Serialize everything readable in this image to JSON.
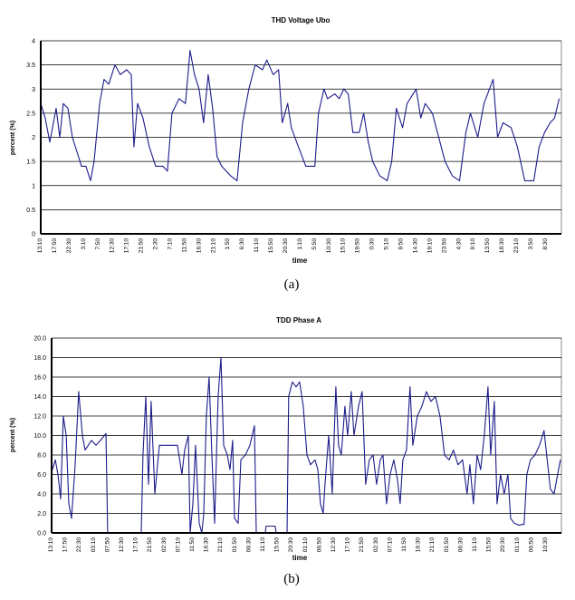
{
  "chart_data": [
    {
      "type": "line",
      "title": "THD  Voltage Ubo",
      "xlabel": "time",
      "ylabel": "percent (%)",
      "caption": "(a)",
      "ylim": [
        0,
        4
      ],
      "xlim": [
        0,
        36.2
      ],
      "grid": true,
      "line_color": "#1c1c8a",
      "yticks": [
        "0",
        "0.5",
        "1",
        "1.5",
        "2",
        "2.5",
        "3",
        "3.5",
        "4"
      ],
      "ytick_values": [
        0,
        0.5,
        1,
        1.5,
        2,
        2.5,
        3,
        3.5,
        4
      ],
      "xticks": [
        "13:10",
        "17:50",
        "22:30",
        "3:10",
        "7:50",
        "12:30",
        "17:10",
        "21:50",
        "2:30",
        "7:10",
        "11:50",
        "16:30",
        "21:10",
        "1:50",
        "6:30",
        "11:10",
        "15:50",
        "20:30",
        "1:10",
        "5:50",
        "10:30",
        "15:10",
        "19:50",
        "0:30",
        "5:10",
        "9:50",
        "14:30",
        "19:10",
        "23:50",
        "4:30",
        "9:10",
        "13:50",
        "18:30",
        "23:10",
        "3:50",
        "8:30"
      ],
      "points": [
        [
          0,
          2.7
        ],
        [
          0.31,
          2.4
        ],
        [
          0.63,
          1.9
        ],
        [
          1.07,
          2.6
        ],
        [
          1.32,
          2.0
        ],
        [
          1.57,
          2.7
        ],
        [
          1.89,
          2.6
        ],
        [
          2.2,
          2.0
        ],
        [
          2.52,
          1.7
        ],
        [
          2.83,
          1.4
        ],
        [
          3.14,
          1.4
        ],
        [
          3.46,
          1.1
        ],
        [
          3.71,
          1.5
        ],
        [
          4.09,
          2.7
        ],
        [
          4.4,
          3.2
        ],
        [
          4.72,
          3.1
        ],
        [
          5.16,
          3.5
        ],
        [
          5.53,
          3.3
        ],
        [
          5.97,
          3.4
        ],
        [
          6.29,
          3.3
        ],
        [
          6.48,
          1.8
        ],
        [
          6.73,
          2.7
        ],
        [
          7.11,
          2.4
        ],
        [
          7.55,
          1.8
        ],
        [
          7.99,
          1.4
        ],
        [
          8.49,
          1.4
        ],
        [
          8.81,
          1.3
        ],
        [
          9.12,
          2.5
        ],
        [
          9.62,
          2.8
        ],
        [
          10.06,
          2.7
        ],
        [
          10.38,
          3.8
        ],
        [
          10.69,
          3.3
        ],
        [
          11.01,
          3.0
        ],
        [
          11.32,
          2.3
        ],
        [
          11.64,
          3.3
        ],
        [
          11.95,
          2.6
        ],
        [
          12.26,
          1.6
        ],
        [
          12.58,
          1.4
        ],
        [
          13.21,
          1.2
        ],
        [
          13.65,
          1.1
        ],
        [
          14.03,
          2.3
        ],
        [
          14.47,
          3.0
        ],
        [
          14.91,
          3.5
        ],
        [
          15.41,
          3.4
        ],
        [
          15.72,
          3.6
        ],
        [
          16.16,
          3.3
        ],
        [
          16.54,
          3.4
        ],
        [
          16.79,
          2.3
        ],
        [
          17.17,
          2.7
        ],
        [
          17.42,
          2.2
        ],
        [
          17.92,
          1.8
        ],
        [
          18.43,
          1.4
        ],
        [
          19.06,
          1.4
        ],
        [
          19.31,
          2.5
        ],
        [
          19.69,
          3.0
        ],
        [
          19.94,
          2.8
        ],
        [
          20.44,
          2.9
        ],
        [
          20.75,
          2.8
        ],
        [
          21.07,
          3.0
        ],
        [
          21.38,
          2.9
        ],
        [
          21.7,
          2.1
        ],
        [
          22.14,
          2.1
        ],
        [
          22.45,
          2.5
        ],
        [
          22.77,
          1.9
        ],
        [
          23.08,
          1.5
        ],
        [
          23.58,
          1.2
        ],
        [
          24.09,
          1.1
        ],
        [
          24.4,
          1.5
        ],
        [
          24.72,
          2.6
        ],
        [
          25.16,
          2.2
        ],
        [
          25.47,
          2.7
        ],
        [
          26.1,
          3.0
        ],
        [
          26.42,
          2.4
        ],
        [
          26.73,
          2.7
        ],
        [
          27.23,
          2.5
        ],
        [
          27.67,
          2.0
        ],
        [
          28.11,
          1.5
        ],
        [
          28.62,
          1.2
        ],
        [
          29.12,
          1.1
        ],
        [
          29.56,
          2.1
        ],
        [
          29.87,
          2.5
        ],
        [
          30.38,
          2.0
        ],
        [
          30.82,
          2.7
        ],
        [
          31.45,
          3.2
        ],
        [
          31.76,
          2.0
        ],
        [
          32.14,
          2.3
        ],
        [
          32.7,
          2.2
        ],
        [
          33.14,
          1.8
        ],
        [
          33.65,
          1.1
        ],
        [
          34.28,
          1.1
        ],
        [
          34.65,
          1.8
        ],
        [
          35.03,
          2.1
        ],
        [
          35.41,
          2.3
        ],
        [
          35.72,
          2.4
        ],
        [
          36.04,
          2.8
        ]
      ]
    },
    {
      "type": "line",
      "title": "TDD  Phase A",
      "xlabel": "time",
      "ylabel": "percent (%)",
      "caption": "(b)",
      "ylim": [
        0,
        20
      ],
      "xlim": [
        0,
        36.1
      ],
      "grid": true,
      "line_color": "#1c1c8a",
      "yticks": [
        "0.0",
        "2.0",
        "4.0",
        "6.0",
        "8.0",
        "10.0",
        "12.0",
        "14.0",
        "16.0",
        "18.0",
        "20.0"
      ],
      "ytick_values": [
        0,
        2,
        4,
        6,
        8,
        10,
        12,
        14,
        16,
        18,
        20
      ],
      "xticks": [
        "13:10",
        "17:50",
        "22:30",
        "03:10",
        "07:50",
        "12:30",
        "17:10",
        "21:50",
        "02:30",
        "07:10",
        "11:50",
        "16:30",
        "21:10",
        "01:50",
        "06:30",
        "11:10",
        "15:50",
        "20:30",
        "01:10",
        "06:50",
        "12:30",
        "17:10",
        "21:50",
        "02:30",
        "07:10",
        "11:50",
        "16:30",
        "21:10",
        "01:50",
        "06:30",
        "11:10",
        "15:50",
        "20:30",
        "01:10",
        "06:50",
        "10:30"
      ],
      "points": [
        [
          0.06,
          6.5
        ],
        [
          0.26,
          7.5
        ],
        [
          0.45,
          6.0
        ],
        [
          0.64,
          3.5
        ],
        [
          0.83,
          12.0
        ],
        [
          1.03,
          10.0
        ],
        [
          1.22,
          3.0
        ],
        [
          1.41,
          1.5
        ],
        [
          1.67,
          7.0
        ],
        [
          1.92,
          14.5
        ],
        [
          2.18,
          10.0
        ],
        [
          2.37,
          8.5
        ],
        [
          2.82,
          9.5
        ],
        [
          3.14,
          9.0
        ],
        [
          3.46,
          9.5
        ],
        [
          3.85,
          10.2
        ],
        [
          3.97,
          0
        ],
        [
          6.35,
          0
        ],
        [
          6.47,
          8
        ],
        [
          6.67,
          14
        ],
        [
          6.86,
          5
        ],
        [
          7.05,
          13.5
        ],
        [
          7.31,
          4
        ],
        [
          7.63,
          9
        ],
        [
          8.27,
          9
        ],
        [
          8.91,
          9
        ],
        [
          9.23,
          6
        ],
        [
          9.42,
          8.5
        ],
        [
          9.68,
          10
        ],
        [
          9.81,
          0
        ],
        [
          10.0,
          3
        ],
        [
          10.19,
          9
        ],
        [
          10.45,
          1
        ],
        [
          10.64,
          0
        ],
        [
          10.77,
          2
        ],
        [
          10.96,
          12
        ],
        [
          11.15,
          16
        ],
        [
          11.35,
          8
        ],
        [
          11.54,
          1
        ],
        [
          11.79,
          14
        ],
        [
          11.99,
          18
        ],
        [
          12.18,
          9
        ],
        [
          12.44,
          8
        ],
        [
          12.63,
          6.5
        ],
        [
          12.82,
          9.5
        ],
        [
          12.95,
          1.5
        ],
        [
          13.21,
          1
        ],
        [
          13.4,
          7.5
        ],
        [
          13.72,
          8
        ],
        [
          14.04,
          9
        ],
        [
          14.36,
          11
        ],
        [
          14.49,
          0
        ],
        [
          15.13,
          0
        ],
        [
          15.19,
          0.7
        ],
        [
          15.83,
          0.7
        ],
        [
          15.9,
          0
        ],
        [
          16.67,
          0
        ],
        [
          16.79,
          14
        ],
        [
          17.05,
          15.5
        ],
        [
          17.31,
          15
        ],
        [
          17.56,
          15.5
        ],
        [
          17.82,
          13
        ],
        [
          18.08,
          8
        ],
        [
          18.33,
          7
        ],
        [
          18.65,
          7.5
        ],
        [
          18.85,
          6.5
        ],
        [
          19.04,
          3
        ],
        [
          19.23,
          2
        ],
        [
          19.36,
          5
        ],
        [
          19.62,
          10
        ],
        [
          19.87,
          4
        ],
        [
          20.13,
          15
        ],
        [
          20.32,
          9
        ],
        [
          20.51,
          8
        ],
        [
          20.77,
          13
        ],
        [
          20.96,
          10
        ],
        [
          21.22,
          14.5
        ],
        [
          21.41,
          10
        ],
        [
          21.73,
          13
        ],
        [
          21.99,
          14.5
        ],
        [
          22.24,
          5
        ],
        [
          22.5,
          7.5
        ],
        [
          22.76,
          8
        ],
        [
          23.01,
          5
        ],
        [
          23.27,
          7.5
        ],
        [
          23.46,
          8
        ],
        [
          23.72,
          3
        ],
        [
          23.97,
          6
        ],
        [
          24.23,
          7.5
        ],
        [
          24.49,
          5.5
        ],
        [
          24.68,
          3
        ],
        [
          24.87,
          7.5
        ],
        [
          25.13,
          8.5
        ],
        [
          25.38,
          15
        ],
        [
          25.58,
          9
        ],
        [
          25.9,
          12
        ],
        [
          26.22,
          13
        ],
        [
          26.54,
          14.5
        ],
        [
          26.86,
          13.5
        ],
        [
          27.18,
          14
        ],
        [
          27.5,
          12
        ],
        [
          27.82,
          8
        ],
        [
          28.14,
          7.5
        ],
        [
          28.46,
          8.5
        ],
        [
          28.78,
          7
        ],
        [
          29.1,
          7.5
        ],
        [
          29.42,
          4
        ],
        [
          29.62,
          7
        ],
        [
          29.87,
          3
        ],
        [
          30.13,
          8
        ],
        [
          30.38,
          6.5
        ],
        [
          30.64,
          10
        ],
        [
          30.9,
          15
        ],
        [
          31.09,
          8
        ],
        [
          31.35,
          13.5
        ],
        [
          31.54,
          3
        ],
        [
          31.79,
          6
        ],
        [
          32.05,
          4
        ],
        [
          32.31,
          6
        ],
        [
          32.5,
          1.5
        ],
        [
          32.76,
          1
        ],
        [
          33.08,
          0.8
        ],
        [
          33.46,
          0.9
        ],
        [
          33.65,
          6
        ],
        [
          33.91,
          7.5
        ],
        [
          34.23,
          8
        ],
        [
          34.55,
          9
        ],
        [
          34.87,
          10.5
        ],
        [
          35.13,
          7
        ],
        [
          35.32,
          4.5
        ],
        [
          35.58,
          4
        ],
        [
          35.83,
          6
        ],
        [
          36.03,
          7.5
        ]
      ]
    }
  ]
}
